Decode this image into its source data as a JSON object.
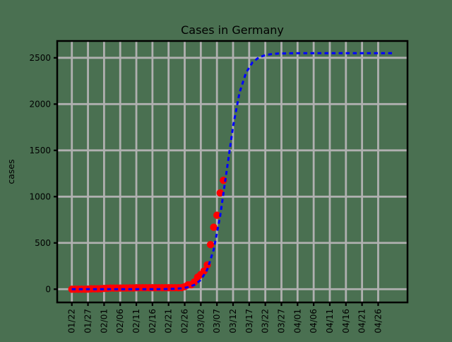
{
  "chart_data": {
    "type": "line",
    "title": "Cases in Germany",
    "xlabel": "",
    "ylabel": "cases",
    "grid": true,
    "legend": "none",
    "axes": {
      "x_tick_labels": [
        "01/22",
        "01/27",
        "02/01",
        "02/06",
        "02/11",
        "02/16",
        "02/21",
        "02/26",
        "03/02",
        "03/07",
        "03/12",
        "03/17",
        "03/22",
        "03/27",
        "04/01",
        "04/06",
        "04/11",
        "04/16",
        "04/21",
        "04/26"
      ],
      "x_tick_days": [
        0,
        5,
        10,
        15,
        20,
        25,
        30,
        35,
        40,
        45,
        50,
        55,
        60,
        65,
        70,
        75,
        80,
        85,
        90,
        95
      ],
      "y_ticks": [
        0,
        500,
        1000,
        1500,
        2000,
        2500
      ],
      "y_tick_labels": [
        "0",
        "500",
        "1000",
        "1500",
        "2000",
        "2500"
      ],
      "xlim_days": [
        -4.54,
        104.1
      ],
      "ylim": [
        -143,
        2682
      ],
      "x_day0_date": "01/22",
      "x_tick_rotation_deg": 90
    },
    "styles": {
      "background": "#4a7051",
      "grid_color": "#b0b0b0",
      "grid_width": 2.8,
      "spine_color": "#000000",
      "spine_width": 2.5,
      "tick_color": "#000000",
      "text_color": "#000000"
    },
    "series": [
      {
        "name": "observed-cases",
        "type": "scatter",
        "color": "#ff0000",
        "marker": "circle",
        "marker_radius": 5.2,
        "dates": [
          "01/22",
          "01/23",
          "01/24",
          "01/25",
          "01/26",
          "01/27",
          "01/28",
          "01/29",
          "01/30",
          "01/31",
          "02/01",
          "02/02",
          "02/03",
          "02/04",
          "02/05",
          "02/06",
          "02/07",
          "02/08",
          "02/09",
          "02/10",
          "02/11",
          "02/12",
          "02/13",
          "02/14",
          "02/15",
          "02/16",
          "02/17",
          "02/18",
          "02/19",
          "02/20",
          "02/21",
          "02/22",
          "02/23",
          "02/24",
          "02/25",
          "02/26",
          "02/27",
          "02/28",
          "02/29",
          "03/01",
          "03/02",
          "03/03",
          "03/04",
          "03/05",
          "03/06",
          "03/07",
          "03/08",
          "03/09"
        ],
        "days": [
          0,
          1,
          2,
          3,
          4,
          5,
          6,
          7,
          8,
          9,
          10,
          11,
          12,
          13,
          14,
          15,
          16,
          17,
          18,
          19,
          20,
          21,
          22,
          23,
          24,
          25,
          26,
          27,
          28,
          29,
          30,
          31,
          32,
          33,
          34,
          35,
          36,
          37,
          38,
          39,
          40,
          41,
          42,
          43,
          44,
          45,
          46,
          47
        ],
        "values": [
          0,
          0,
          0,
          0,
          0,
          1,
          4,
          4,
          4,
          5,
          8,
          10,
          12,
          12,
          12,
          12,
          13,
          13,
          14,
          14,
          16,
          16,
          16,
          16,
          16,
          16,
          16,
          16,
          16,
          16,
          16,
          16,
          16,
          16,
          17,
          27,
          46,
          48,
          79,
          130,
          159,
          196,
          262,
          482,
          670,
          799,
          1040,
          1176
        ]
      },
      {
        "name": "logistic-fit",
        "type": "line",
        "color": "#0000ff",
        "line_style": "dashed",
        "dash": [
          5.5,
          4.5
        ],
        "line_width": 3,
        "plateau": 2550,
        "midpoint_day": 48,
        "growth_rate": 0.4,
        "days": [
          0,
          2,
          4,
          6,
          8,
          10,
          12,
          14,
          16,
          18,
          20,
          22,
          24,
          26,
          28,
          30,
          32,
          34,
          36,
          38,
          40,
          42,
          44,
          46,
          48,
          50,
          52,
          54,
          56,
          58,
          60,
          62,
          64,
          66,
          68,
          70,
          72,
          74,
          76,
          78,
          80,
          82,
          84,
          86,
          88,
          90,
          92,
          94,
          96,
          98,
          100
        ],
        "values": [
          0,
          0,
          0,
          0,
          0,
          0,
          0,
          0,
          0,
          0,
          0,
          0.1,
          0.2,
          0.4,
          0.9,
          1.9,
          4.2,
          9.4,
          21,
          46,
          100,
          212,
          428,
          791,
          1275,
          1759,
          2122,
          2338,
          2450,
          2504,
          2529,
          2541,
          2546,
          2548,
          2549,
          2550,
          2550,
          2550,
          2550,
          2550,
          2550,
          2550,
          2550,
          2550,
          2550,
          2550,
          2550,
          2550,
          2550,
          2550,
          2550
        ]
      }
    ]
  }
}
